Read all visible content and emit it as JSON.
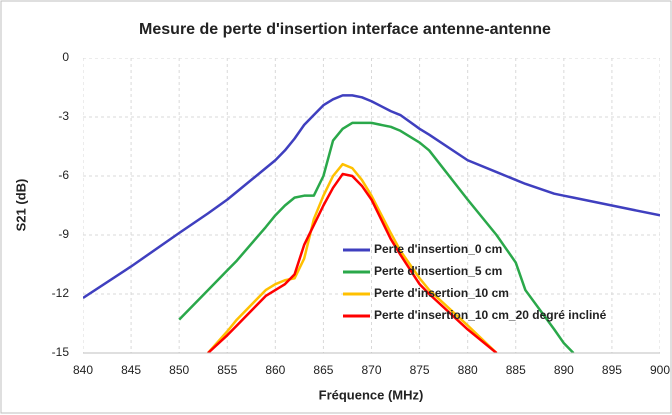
{
  "chart_data": {
    "type": "line",
    "title": "Mesure de perte d'insertion interface antenne-antenne",
    "x_label": "Fréquence (MHz)",
    "y_label": "S21 (dB)",
    "x": [
      840,
      845,
      850,
      853,
      855,
      856,
      859,
      860,
      861,
      862,
      863,
      864,
      865,
      866,
      867,
      868,
      869,
      870,
      872,
      873,
      875,
      876,
      880,
      883,
      885,
      886,
      889,
      890,
      891,
      895,
      900
    ],
    "series": [
      {
        "name": "Perte d'insertion_0 cm",
        "color": "#3f3fbf",
        "values": [
          -12.2,
          -10.6,
          -8.9,
          -7.9,
          -7.2,
          -6.8,
          -5.6,
          -5.2,
          -4.7,
          -4.1,
          -3.4,
          -2.9,
          -2.4,
          -2.1,
          -1.9,
          -1.9,
          -2.0,
          -2.2,
          -2.7,
          -2.9,
          -3.6,
          -3.9,
          -5.2,
          -5.8,
          -6.2,
          -6.4,
          -6.9,
          -7.0,
          -7.1,
          -7.5,
          -8.0
        ]
      },
      {
        "name": "Perte d'insertion_5 cm",
        "color": "#2aa84a",
        "values": [
          null,
          null,
          -13.3,
          -11.8,
          -10.8,
          -10.3,
          -8.6,
          -8.0,
          -7.5,
          -7.1,
          -7.0,
          -7.0,
          -6.0,
          -4.2,
          -3.6,
          -3.3,
          -3.3,
          -3.3,
          -3.5,
          -3.7,
          -4.3,
          -4.7,
          -7.2,
          -9.0,
          -10.4,
          -11.8,
          -13.8,
          -14.5,
          -15.0,
          null,
          null
        ]
      },
      {
        "name": "Perte d'insertion_10 cm",
        "color": "#ffc000",
        "values": [
          null,
          null,
          null,
          -15,
          -13.9,
          -13.3,
          -11.8,
          -11.5,
          -11.3,
          -11.2,
          -10.2,
          -8.2,
          -7.0,
          -6.0,
          -5.4,
          -5.6,
          -6.2,
          -7.0,
          -8.9,
          -9.8,
          -11.2,
          -11.8,
          -13.6,
          -15,
          null,
          null,
          null,
          null,
          null,
          null,
          null
        ]
      },
      {
        "name": "Perte d'insertion_10 cm_20 degré incliné",
        "color": "#ff0000",
        "values": [
          null,
          null,
          null,
          -15,
          -14.1,
          -13.6,
          -12.1,
          -11.8,
          -11.5,
          -11.0,
          -9.5,
          -8.5,
          -7.5,
          -6.6,
          -5.9,
          -6.0,
          -6.5,
          -7.2,
          -9.2,
          -10.0,
          -11.5,
          -12.0,
          -13.8,
          -15,
          null,
          null,
          null,
          null,
          null,
          null,
          null
        ]
      }
    ],
    "xlim": [
      840,
      900
    ],
    "xticks": [
      840,
      845,
      850,
      855,
      860,
      865,
      870,
      875,
      880,
      885,
      890,
      895,
      900
    ],
    "ylim": [
      -15,
      0
    ],
    "yticks": [
      0,
      -3,
      -6,
      -9,
      -12,
      -15
    ],
    "grid": true,
    "legend": "inside"
  }
}
